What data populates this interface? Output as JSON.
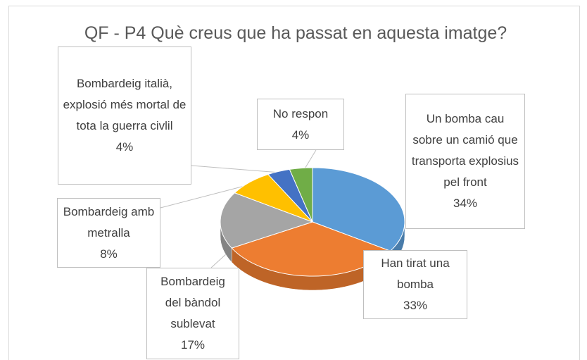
{
  "chart_data": {
    "type": "pie",
    "title": "QF - P4 Què creus que ha passat en aquesta imatge?",
    "categories": [
      "Un bomba cau sobre un camió que transporta explosius pel front",
      "Han tirat una bomba",
      "Bombardeig del bàndol sublevat",
      "Bombardeig amb metralla",
      "Bombardeig italià, explosió més mortal de tota la guerra civlil",
      "No respon"
    ],
    "values": [
      34,
      33,
      17,
      8,
      4,
      4
    ],
    "value_labels": [
      "34%",
      "33%",
      "17%",
      "8%",
      "4%",
      "4%"
    ],
    "colors": [
      "#5b9bd5",
      "#ed7d31",
      "#a5a5a5",
      "#ffc000",
      "#4472c4",
      "#70ad47"
    ]
  }
}
